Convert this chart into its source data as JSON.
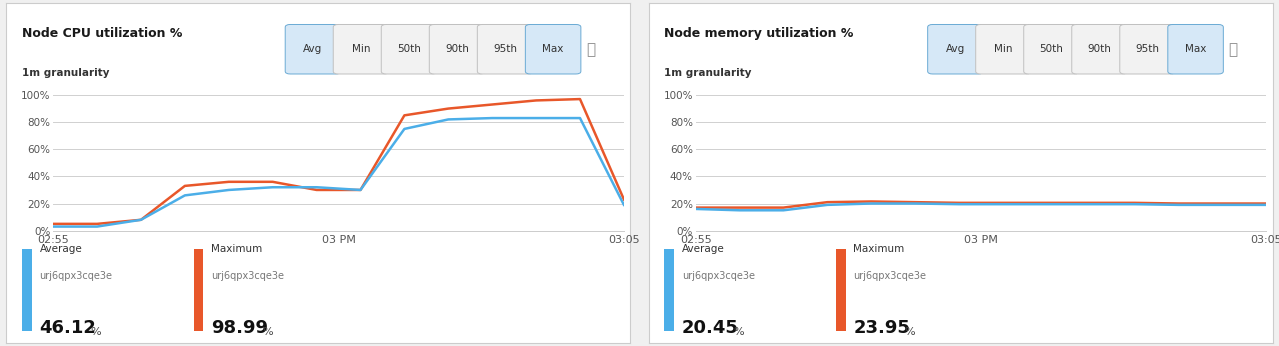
{
  "panel1": {
    "title": "Node CPU utilization %",
    "subtitle": "1m granularity",
    "x_ticks": [
      "02:55",
      "03 PM",
      "03:05"
    ],
    "y_ticks": [
      "0%",
      "20%",
      "40%",
      "60%",
      "80%",
      "100%"
    ],
    "y_vals": [
      0,
      20,
      40,
      60,
      80,
      100
    ],
    "avg_x": [
      0,
      1,
      2,
      3,
      4,
      5,
      6,
      7,
      8,
      9,
      10,
      11,
      12,
      13
    ],
    "avg_y": [
      3,
      3,
      8,
      26,
      30,
      32,
      32,
      30,
      75,
      82,
      83,
      83,
      83,
      19
    ],
    "max_x": [
      0,
      1,
      2,
      3,
      4,
      5,
      6,
      7,
      8,
      9,
      10,
      11,
      12,
      13
    ],
    "max_y": [
      5,
      5,
      8,
      33,
      36,
      36,
      30,
      30,
      85,
      90,
      93,
      96,
      97,
      23
    ],
    "avg_color": "#4baee8",
    "max_color": "#e8572a",
    "buttons": [
      "Avg",
      "Min",
      "50th",
      "90th",
      "95th",
      "Max"
    ],
    "active_buttons": [
      "Avg",
      "Max"
    ],
    "legend_avg_label": "Average",
    "legend_avg_sub": "urj6qpx3cqe3e",
    "legend_avg_value": "46.12",
    "legend_max_label": "Maximum",
    "legend_max_sub": "urj6qpx3cqe3e",
    "legend_max_value": "98.99",
    "x_tick_positions": [
      0,
      6.5,
      13
    ],
    "bg_color": "#ffffff",
    "grid_color": "#d0d0d0"
  },
  "panel2": {
    "title": "Node memory utilization %",
    "subtitle": "1m granularity",
    "x_ticks": [
      "02:55",
      "03 PM",
      "03:05"
    ],
    "y_ticks": [
      "0%",
      "20%",
      "40%",
      "60%",
      "80%",
      "100%"
    ],
    "y_vals": [
      0,
      20,
      40,
      60,
      80,
      100
    ],
    "avg_x": [
      0,
      1,
      2,
      3,
      4,
      5,
      6,
      7,
      8,
      9,
      10,
      11,
      12,
      13
    ],
    "avg_y": [
      16,
      15,
      15,
      19,
      20,
      20,
      19.5,
      19.5,
      19.5,
      19.5,
      19.5,
      19,
      19,
      19
    ],
    "max_x": [
      0,
      1,
      2,
      3,
      4,
      5,
      6,
      7,
      8,
      9,
      10,
      11,
      12,
      13
    ],
    "max_y": [
      17,
      17,
      17,
      21,
      21.5,
      21,
      20.5,
      20.5,
      20.5,
      20.5,
      20.5,
      20,
      20,
      20
    ],
    "avg_color": "#4baee8",
    "max_color": "#e8572a",
    "buttons": [
      "Avg",
      "Min",
      "50th",
      "90th",
      "95th",
      "Max"
    ],
    "active_buttons": [
      "Avg",
      "Max"
    ],
    "legend_avg_label": "Average",
    "legend_avg_sub": "urj6qpx3cqe3e",
    "legend_avg_value": "20.45",
    "legend_max_label": "Maximum",
    "legend_max_sub": "urj6qpx3cqe3e",
    "legend_max_value": "23.95",
    "x_tick_positions": [
      0,
      6.5,
      13
    ],
    "bg_color": "#ffffff",
    "grid_color": "#d0d0d0"
  },
  "outer_bg": "#f0f0f0",
  "panel_bg": "#ffffff",
  "border_color": "#cccccc"
}
